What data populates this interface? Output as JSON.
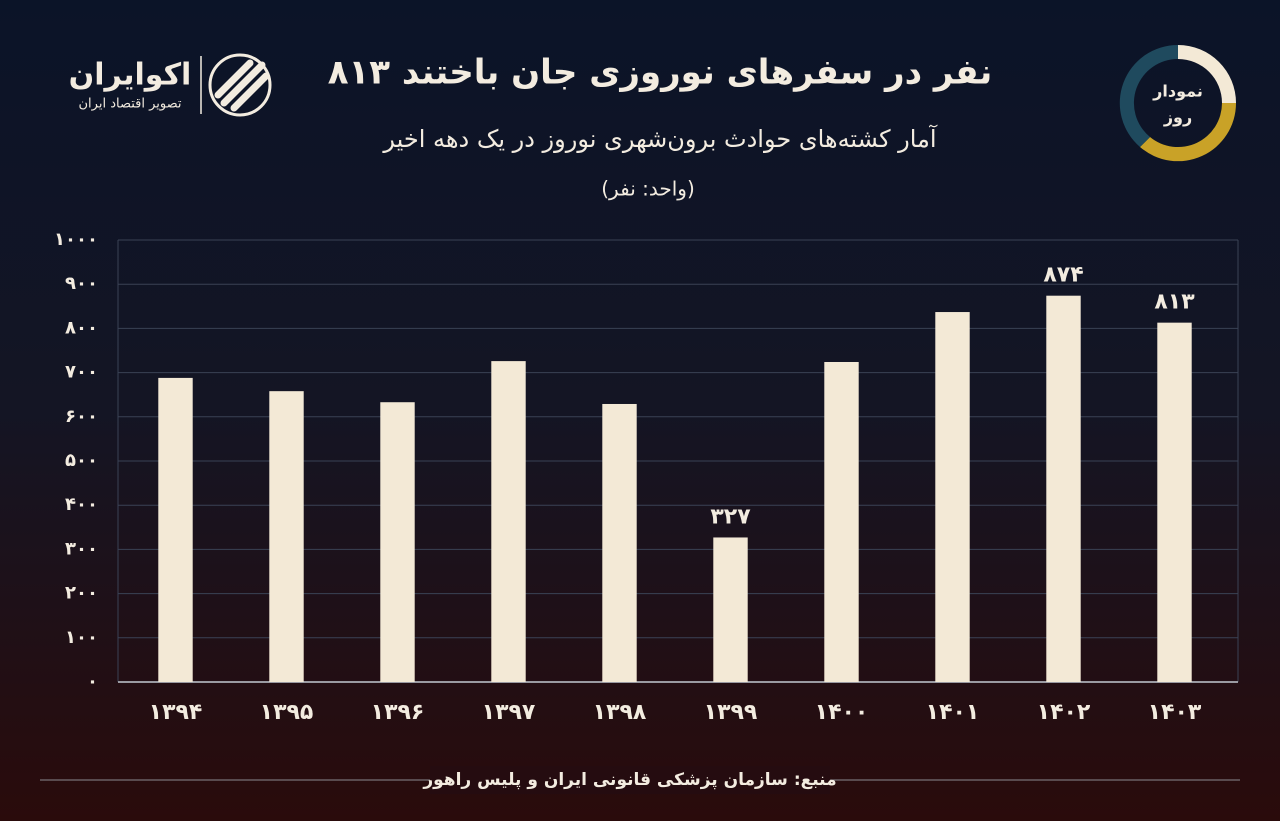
{
  "chart_data": {
    "type": "bar",
    "title": "۸۱۳ نفر در سفرهای نوروزی جان باختند",
    "subtitle": "آمار کشته‌های حوادث برون‌شهری نوروز در یک دهه اخیر",
    "unit_label": "(واحد: نفر)",
    "source": "منبع: سازمان پزشکی قانونی ایران و پلیس راهور",
    "categories": [
      "۱۳۹۴",
      "۱۳۹۵",
      "۱۳۹۶",
      "۱۳۹۷",
      "۱۳۹۸",
      "۱۳۹۹",
      "۱۴۰۰",
      "۱۴۰۱",
      "۱۴۰۲",
      "۱۴۰۳"
    ],
    "values": [
      688,
      658,
      633,
      726,
      629,
      327,
      724,
      837,
      874,
      813
    ],
    "value_labels": [
      null,
      null,
      null,
      null,
      null,
      "۳۲۷",
      null,
      null,
      "۸۷۴",
      "۸۱۳"
    ],
    "color": "#f3e9d6",
    "ylim": [
      0,
      1000
    ],
    "yticks": [
      {
        "value": 0,
        "label": "۰"
      },
      {
        "value": 100,
        "label": "۱۰۰"
      },
      {
        "value": 200,
        "label": "۲۰۰"
      },
      {
        "value": 300,
        "label": "۳۰۰"
      },
      {
        "value": 400,
        "label": "۴۰۰"
      },
      {
        "value": 500,
        "label": "۵۰۰"
      },
      {
        "value": 600,
        "label": "۶۰۰"
      },
      {
        "value": 700,
        "label": "۷۰۰"
      },
      {
        "value": 800,
        "label": "۸۰۰"
      },
      {
        "value": 900,
        "label": "۹۰۰"
      },
      {
        "value": 1000,
        "label": "۱۰۰۰"
      }
    ],
    "grid": true
  },
  "branding": {
    "logo_name": "اکوایران",
    "logo_tagline": "تصویر اقتصاد ایران",
    "badge_line1": "نمودار",
    "badge_line2": "روز"
  }
}
